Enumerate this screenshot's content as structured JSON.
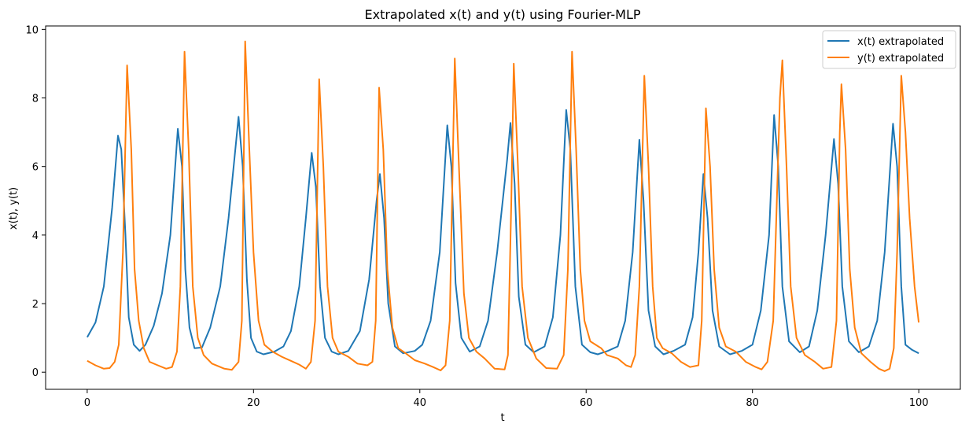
{
  "chart_data": {
    "type": "line",
    "title": "Extrapolated x(t) and y(t) using Fourier-MLP",
    "xlabel": "t",
    "ylabel": "x(t), y(t)",
    "xlim": [
      -5,
      105
    ],
    "ylim": [
      -0.5,
      10.1
    ],
    "x_ticks": [
      0,
      20,
      40,
      60,
      80,
      100
    ],
    "x_tick_labels": [
      "0",
      "20",
      "40",
      "60",
      "80",
      "100"
    ],
    "y_ticks": [
      0,
      2,
      4,
      6,
      8,
      10
    ],
    "y_tick_labels": [
      "0",
      "2",
      "4",
      "6",
      "8",
      "10"
    ],
    "grid": false,
    "legend_position": "top-right",
    "series": [
      {
        "name": "x(t) extrapolated",
        "color": "#1f77b4",
        "points": [
          [
            0,
            1.02
          ],
          [
            1,
            1.45
          ],
          [
            2,
            2.5
          ],
          [
            3,
            4.8
          ],
          [
            3.7,
            6.9
          ],
          [
            4.1,
            6.5
          ],
          [
            4.6,
            4.0
          ],
          [
            5.0,
            1.6
          ],
          [
            5.6,
            0.8
          ],
          [
            6.3,
            0.62
          ],
          [
            7.0,
            0.8
          ],
          [
            8.0,
            1.35
          ],
          [
            9.0,
            2.3
          ],
          [
            10.0,
            4.0
          ],
          [
            10.9,
            7.1
          ],
          [
            11.4,
            6.0
          ],
          [
            11.8,
            3.0
          ],
          [
            12.3,
            1.3
          ],
          [
            12.9,
            0.7
          ],
          [
            13.8,
            0.72
          ],
          [
            14.8,
            1.3
          ],
          [
            16.0,
            2.5
          ],
          [
            17.0,
            4.5
          ],
          [
            18.2,
            7.45
          ],
          [
            18.7,
            6.0
          ],
          [
            19.2,
            2.7
          ],
          [
            19.7,
            1.0
          ],
          [
            20.4,
            0.6
          ],
          [
            21.2,
            0.52
          ],
          [
            22.5,
            0.6
          ],
          [
            23.6,
            0.75
          ],
          [
            24.5,
            1.2
          ],
          [
            25.5,
            2.5
          ],
          [
            26.3,
            4.5
          ],
          [
            27.0,
            6.4
          ],
          [
            27.5,
            5.4
          ],
          [
            28.0,
            2.5
          ],
          [
            28.6,
            1.0
          ],
          [
            29.4,
            0.6
          ],
          [
            30.2,
            0.52
          ],
          [
            31.4,
            0.62
          ],
          [
            32.8,
            1.2
          ],
          [
            33.9,
            2.7
          ],
          [
            34.8,
            5.0
          ],
          [
            35.2,
            5.78
          ],
          [
            35.7,
            4.5
          ],
          [
            36.2,
            2.0
          ],
          [
            37.0,
            0.75
          ],
          [
            38.0,
            0.55
          ],
          [
            39.4,
            0.62
          ],
          [
            40.3,
            0.8
          ],
          [
            41.3,
            1.5
          ],
          [
            42.4,
            3.5
          ],
          [
            43.3,
            7.2
          ],
          [
            43.8,
            6.0
          ],
          [
            44.3,
            2.6
          ],
          [
            45.0,
            1.0
          ],
          [
            46.0,
            0.6
          ],
          [
            47.2,
            0.75
          ],
          [
            48.2,
            1.5
          ],
          [
            49.3,
            3.5
          ],
          [
            50.5,
            6.2
          ],
          [
            50.9,
            7.27
          ],
          [
            51.4,
            5.5
          ],
          [
            51.9,
            2.2
          ],
          [
            52.7,
            0.8
          ],
          [
            53.7,
            0.58
          ],
          [
            55.0,
            0.75
          ],
          [
            56.0,
            1.6
          ],
          [
            56.9,
            4.0
          ],
          [
            57.6,
            7.65
          ],
          [
            58.1,
            6.5
          ],
          [
            58.7,
            2.5
          ],
          [
            59.5,
            0.8
          ],
          [
            60.5,
            0.58
          ],
          [
            61.4,
            0.52
          ],
          [
            62.6,
            0.62
          ],
          [
            63.8,
            0.75
          ],
          [
            64.7,
            1.5
          ],
          [
            65.6,
            3.5
          ],
          [
            66.4,
            6.78
          ],
          [
            66.9,
            5.0
          ],
          [
            67.5,
            1.8
          ],
          [
            68.3,
            0.75
          ],
          [
            69.3,
            0.52
          ],
          [
            70.5,
            0.62
          ],
          [
            71.9,
            0.8
          ],
          [
            72.8,
            1.6
          ],
          [
            73.5,
            3.5
          ],
          [
            74.1,
            5.78
          ],
          [
            74.6,
            4.5
          ],
          [
            75.2,
            1.8
          ],
          [
            76.0,
            0.75
          ],
          [
            77.3,
            0.52
          ],
          [
            78.7,
            0.62
          ],
          [
            80.0,
            0.8
          ],
          [
            81.0,
            1.8
          ],
          [
            82.0,
            4.0
          ],
          [
            82.6,
            7.5
          ],
          [
            83.1,
            6.0
          ],
          [
            83.6,
            2.5
          ],
          [
            84.4,
            0.9
          ],
          [
            85.7,
            0.58
          ],
          [
            86.8,
            0.75
          ],
          [
            87.8,
            1.8
          ],
          [
            88.8,
            4.0
          ],
          [
            89.8,
            6.8
          ],
          [
            90.3,
            5.5
          ],
          [
            90.8,
            2.5
          ],
          [
            91.6,
            0.9
          ],
          [
            92.8,
            0.58
          ],
          [
            94.0,
            0.75
          ],
          [
            95.0,
            1.5
          ],
          [
            95.9,
            3.5
          ],
          [
            96.9,
            7.25
          ],
          [
            97.4,
            6.0
          ],
          [
            97.9,
            2.5
          ],
          [
            98.4,
            0.8
          ],
          [
            99.2,
            0.65
          ],
          [
            100,
            0.55
          ]
        ]
      },
      {
        "name": "y(t) extrapolated",
        "color": "#ff7f0e",
        "points": [
          [
            0,
            0.33
          ],
          [
            1,
            0.2
          ],
          [
            2,
            0.1
          ],
          [
            2.7,
            0.12
          ],
          [
            3.3,
            0.3
          ],
          [
            3.8,
            0.8
          ],
          [
            4.3,
            3.5
          ],
          [
            4.8,
            8.95
          ],
          [
            5.3,
            6.5
          ],
          [
            5.7,
            3.0
          ],
          [
            6.2,
            1.5
          ],
          [
            6.8,
            0.7
          ],
          [
            7.5,
            0.3
          ],
          [
            8.5,
            0.2
          ],
          [
            9.5,
            0.1
          ],
          [
            10.2,
            0.15
          ],
          [
            10.8,
            0.6
          ],
          [
            11.2,
            2.5
          ],
          [
            11.7,
            9.35
          ],
          [
            12.2,
            6.5
          ],
          [
            12.7,
            2.5
          ],
          [
            13.3,
            1.0
          ],
          [
            14.0,
            0.5
          ],
          [
            15.0,
            0.25
          ],
          [
            16.5,
            0.1
          ],
          [
            17.4,
            0.07
          ],
          [
            18.2,
            0.3
          ],
          [
            18.6,
            1.5
          ],
          [
            19.0,
            9.65
          ],
          [
            19.5,
            6.5
          ],
          [
            20.0,
            3.5
          ],
          [
            20.6,
            1.5
          ],
          [
            21.3,
            0.8
          ],
          [
            22.3,
            0.6
          ],
          [
            23.4,
            0.45
          ],
          [
            24.5,
            0.33
          ],
          [
            25.5,
            0.22
          ],
          [
            26.3,
            0.1
          ],
          [
            26.9,
            0.3
          ],
          [
            27.4,
            1.5
          ],
          [
            27.9,
            8.55
          ],
          [
            28.4,
            6.0
          ],
          [
            28.9,
            2.5
          ],
          [
            29.5,
            1.0
          ],
          [
            30.2,
            0.6
          ],
          [
            31.4,
            0.45
          ],
          [
            32.5,
            0.25
          ],
          [
            33.7,
            0.2
          ],
          [
            34.3,
            0.3
          ],
          [
            34.7,
            1.5
          ],
          [
            35.1,
            8.3
          ],
          [
            35.6,
            6.5
          ],
          [
            36.1,
            3.0
          ],
          [
            36.7,
            1.3
          ],
          [
            37.4,
            0.7
          ],
          [
            38.3,
            0.55
          ],
          [
            39.4,
            0.35
          ],
          [
            40.6,
            0.25
          ],
          [
            41.6,
            0.15
          ],
          [
            42.5,
            0.05
          ],
          [
            43.1,
            0.2
          ],
          [
            43.6,
            1.5
          ],
          [
            44.2,
            9.15
          ],
          [
            44.7,
            6.0
          ],
          [
            45.3,
            2.3
          ],
          [
            45.9,
            1.0
          ],
          [
            46.8,
            0.6
          ],
          [
            47.8,
            0.4
          ],
          [
            49.0,
            0.1
          ],
          [
            50.2,
            0.08
          ],
          [
            50.6,
            0.5
          ],
          [
            51.0,
            5.0
          ],
          [
            51.3,
            9.0
          ],
          [
            51.8,
            6.0
          ],
          [
            52.3,
            2.5
          ],
          [
            53.0,
            1.0
          ],
          [
            54.0,
            0.4
          ],
          [
            55.2,
            0.12
          ],
          [
            56.5,
            0.1
          ],
          [
            57.3,
            0.5
          ],
          [
            57.8,
            3.0
          ],
          [
            58.3,
            9.35
          ],
          [
            58.8,
            6.5
          ],
          [
            59.3,
            3.0
          ],
          [
            59.8,
            1.5
          ],
          [
            60.5,
            0.9
          ],
          [
            61.8,
            0.7
          ],
          [
            62.5,
            0.5
          ],
          [
            63.8,
            0.4
          ],
          [
            64.8,
            0.2
          ],
          [
            65.4,
            0.15
          ],
          [
            65.9,
            0.5
          ],
          [
            66.4,
            2.5
          ],
          [
            67.0,
            8.65
          ],
          [
            67.5,
            6.0
          ],
          [
            68.0,
            2.5
          ],
          [
            68.5,
            1.0
          ],
          [
            69.2,
            0.7
          ],
          [
            70.3,
            0.55
          ],
          [
            71.4,
            0.3
          ],
          [
            72.5,
            0.15
          ],
          [
            73.5,
            0.2
          ],
          [
            73.9,
            1.5
          ],
          [
            74.4,
            7.7
          ],
          [
            74.9,
            6.0
          ],
          [
            75.4,
            3.0
          ],
          [
            76.0,
            1.3
          ],
          [
            76.8,
            0.75
          ],
          [
            78.0,
            0.6
          ],
          [
            79.2,
            0.3
          ],
          [
            80.4,
            0.15
          ],
          [
            81.1,
            0.08
          ],
          [
            81.8,
            0.3
          ],
          [
            82.5,
            1.5
          ],
          [
            83.3,
            8.0
          ],
          [
            83.6,
            9.1
          ],
          [
            84.1,
            6.0
          ],
          [
            84.6,
            2.5
          ],
          [
            85.3,
            1.0
          ],
          [
            86.3,
            0.5
          ],
          [
            87.5,
            0.3
          ],
          [
            88.5,
            0.1
          ],
          [
            89.5,
            0.15
          ],
          [
            90.1,
            1.5
          ],
          [
            90.5,
            7.0
          ],
          [
            90.7,
            8.4
          ],
          [
            91.2,
            6.5
          ],
          [
            91.7,
            3.0
          ],
          [
            92.3,
            1.3
          ],
          [
            93.1,
            0.55
          ],
          [
            94.2,
            0.3
          ],
          [
            95.2,
            0.1
          ],
          [
            95.9,
            0.03
          ],
          [
            96.5,
            0.1
          ],
          [
            97.0,
            0.7
          ],
          [
            97.4,
            3.5
          ],
          [
            97.9,
            8.65
          ],
          [
            98.4,
            7.0
          ],
          [
            98.9,
            4.5
          ],
          [
            99.5,
            2.5
          ],
          [
            100,
            1.45
          ]
        ]
      }
    ]
  }
}
